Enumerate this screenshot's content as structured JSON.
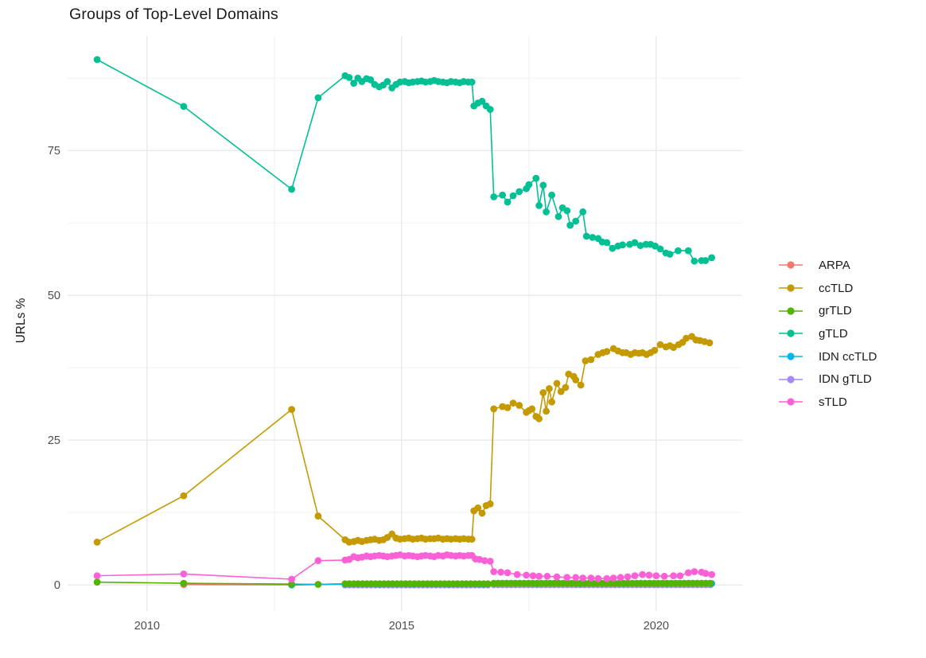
{
  "title": "Groups of Top-Level Domains",
  "axes": {
    "y_label": "URLs %",
    "x_tick_labels": [
      "2010",
      "2015",
      "2020"
    ],
    "y_tick_labels": [
      "0",
      "25",
      "50",
      "75"
    ]
  },
  "chart_data": {
    "type": "line",
    "title": "Groups of Top-Level Domains",
    "xlabel": "",
    "ylabel": "URLs %",
    "grid": true,
    "legend_position": "right",
    "x_domain": [
      2008.44,
      2021.69
    ],
    "y_domain": [
      -4.5,
      94.8
    ],
    "x_ticks": [
      {
        "v": 2010,
        "label": "2010"
      },
      {
        "v": 2015,
        "label": "2015"
      },
      {
        "v": 2020,
        "label": "2020"
      }
    ],
    "x_minor": [
      2012.5,
      2017.5
    ],
    "y_ticks": [
      {
        "v": 0,
        "label": "0"
      },
      {
        "v": 25,
        "label": "25"
      },
      {
        "v": 50,
        "label": "50"
      },
      {
        "v": 75,
        "label": "75"
      }
    ],
    "y_minor": [
      12.5,
      37.5,
      62.5,
      87.5
    ],
    "line_order": [
      "ARPA",
      "IDN gTLD",
      "grTLD",
      "IDN ccTLD",
      "ccTLD",
      "gTLD",
      "sTLD"
    ],
    "point_order": [
      "ARPA",
      "IDN gTLD",
      "IDN ccTLD",
      "grTLD",
      "ccTLD",
      "gTLD",
      "sTLD"
    ],
    "series": [
      {
        "name": "ARPA",
        "color": "#F8766D",
        "points": [
          [
            2010.72,
            0.08
          ],
          [
            2012.84,
            0.02
          ]
        ],
        "bands": [
          {
            "x0": 2013.89,
            "x1": 2016.77,
            "step": 0.085,
            "value": 0.2
          },
          {
            "x0": 2016.81,
            "x1": 2021.09,
            "step": 0.085,
            "value": 0.3
          }
        ]
      },
      {
        "name": "ccTLD",
        "color": "#C49A00",
        "points": [
          [
            2009.02,
            7.4
          ],
          [
            2010.72,
            15.4
          ],
          [
            2012.84,
            30.3
          ],
          [
            2013.36,
            11.9
          ],
          [
            2013.89,
            7.8
          ],
          [
            2013.97,
            7.4
          ],
          [
            2014.06,
            7.5
          ],
          [
            2014.14,
            7.7
          ],
          [
            2014.22,
            7.5
          ],
          [
            2014.31,
            7.7
          ],
          [
            2014.39,
            7.8
          ],
          [
            2014.47,
            7.9
          ],
          [
            2014.56,
            7.7
          ],
          [
            2014.64,
            7.8
          ],
          [
            2014.72,
            8.2
          ],
          [
            2014.81,
            8.8
          ],
          [
            2014.89,
            8.1
          ],
          [
            2014.97,
            7.9
          ],
          [
            2015.06,
            8.0
          ],
          [
            2015.14,
            8.1
          ],
          [
            2015.22,
            7.9
          ],
          [
            2015.31,
            8.0
          ],
          [
            2015.39,
            8.1
          ],
          [
            2015.47,
            7.9
          ],
          [
            2015.56,
            8.0
          ],
          [
            2015.64,
            8.0
          ],
          [
            2015.72,
            8.1
          ],
          [
            2015.81,
            7.9
          ],
          [
            2015.89,
            8.0
          ],
          [
            2015.97,
            7.9
          ],
          [
            2016.06,
            8.0
          ],
          [
            2016.14,
            7.9
          ],
          [
            2016.22,
            8.0
          ],
          [
            2016.31,
            7.9
          ],
          [
            2016.38,
            7.9
          ],
          [
            2016.42,
            12.8
          ],
          [
            2016.5,
            13.3
          ],
          [
            2016.58,
            12.4
          ],
          [
            2016.66,
            13.7
          ],
          [
            2016.74,
            14.0
          ],
          [
            2016.81,
            30.4
          ],
          [
            2016.98,
            30.8
          ],
          [
            2017.08,
            30.6
          ],
          [
            2017.19,
            31.4
          ],
          [
            2017.31,
            31.0
          ],
          [
            2017.45,
            29.8
          ],
          [
            2017.5,
            30.1
          ],
          [
            2017.56,
            30.4
          ],
          [
            2017.64,
            29.1
          ],
          [
            2017.7,
            28.7
          ],
          [
            2017.78,
            33.2
          ],
          [
            2017.84,
            30.0
          ],
          [
            2017.9,
            33.9
          ],
          [
            2017.95,
            31.6
          ],
          [
            2018.05,
            34.8
          ],
          [
            2018.13,
            33.4
          ],
          [
            2018.22,
            34.1
          ],
          [
            2018.28,
            36.4
          ],
          [
            2018.38,
            36.0
          ],
          [
            2018.42,
            35.4
          ],
          [
            2018.52,
            34.5
          ],
          [
            2018.61,
            38.7
          ],
          [
            2018.72,
            38.9
          ],
          [
            2018.86,
            39.8
          ],
          [
            2018.95,
            40.1
          ],
          [
            2019.03,
            40.3
          ],
          [
            2019.16,
            40.8
          ],
          [
            2019.25,
            40.4
          ],
          [
            2019.34,
            40.1
          ],
          [
            2019.41,
            40.1
          ],
          [
            2019.5,
            39.8
          ],
          [
            2019.58,
            40.1
          ],
          [
            2019.66,
            40.0
          ],
          [
            2019.73,
            40.1
          ],
          [
            2019.81,
            39.8
          ],
          [
            2019.89,
            40.1
          ],
          [
            2019.97,
            40.5
          ],
          [
            2020.08,
            41.5
          ],
          [
            2020.19,
            41.1
          ],
          [
            2020.27,
            41.3
          ],
          [
            2020.34,
            41.0
          ],
          [
            2020.44,
            41.5
          ],
          [
            2020.52,
            41.9
          ],
          [
            2020.59,
            42.6
          ],
          [
            2020.7,
            42.9
          ],
          [
            2020.78,
            42.3
          ],
          [
            2020.86,
            42.2
          ],
          [
            2020.95,
            42.0
          ],
          [
            2021.05,
            41.8
          ]
        ]
      },
      {
        "name": "grTLD",
        "color": "#53B400",
        "points": [
          [
            2009.02,
            0.5
          ],
          [
            2010.72,
            0.3
          ],
          [
            2012.84,
            0.15
          ],
          [
            2013.36,
            0.1
          ]
        ],
        "bands": [
          {
            "x0": 2013.89,
            "x1": 2016.77,
            "step": 0.085,
            "value": 0.2
          },
          {
            "x0": 2016.81,
            "x1": 2021.09,
            "step": 0.085,
            "value": 0.3
          }
        ]
      },
      {
        "name": "gTLD",
        "color": "#00C094",
        "points": [
          [
            2009.02,
            90.7
          ],
          [
            2010.72,
            82.6
          ],
          [
            2012.84,
            68.3
          ],
          [
            2013.36,
            84.1
          ],
          [
            2013.89,
            87.9
          ],
          [
            2013.97,
            87.6
          ],
          [
            2014.06,
            86.6
          ],
          [
            2014.14,
            87.5
          ],
          [
            2014.22,
            86.9
          ],
          [
            2014.31,
            87.4
          ],
          [
            2014.39,
            87.2
          ],
          [
            2014.47,
            86.4
          ],
          [
            2014.56,
            86.0
          ],
          [
            2014.64,
            86.3
          ],
          [
            2014.72,
            86.9
          ],
          [
            2014.81,
            85.8
          ],
          [
            2014.89,
            86.4
          ],
          [
            2014.97,
            86.8
          ],
          [
            2015.06,
            86.9
          ],
          [
            2015.14,
            86.7
          ],
          [
            2015.22,
            86.8
          ],
          [
            2015.31,
            86.9
          ],
          [
            2015.39,
            87.0
          ],
          [
            2015.47,
            86.8
          ],
          [
            2015.56,
            86.9
          ],
          [
            2015.64,
            87.1
          ],
          [
            2015.72,
            86.9
          ],
          [
            2015.81,
            86.8
          ],
          [
            2015.89,
            86.7
          ],
          [
            2015.97,
            86.9
          ],
          [
            2016.06,
            86.8
          ],
          [
            2016.14,
            86.7
          ],
          [
            2016.22,
            86.9
          ],
          [
            2016.31,
            86.8
          ],
          [
            2016.38,
            86.8
          ],
          [
            2016.42,
            82.7
          ],
          [
            2016.5,
            83.2
          ],
          [
            2016.58,
            83.5
          ],
          [
            2016.66,
            82.7
          ],
          [
            2016.74,
            82.1
          ],
          [
            2016.81,
            67.0
          ],
          [
            2016.98,
            67.3
          ],
          [
            2017.08,
            66.1
          ],
          [
            2017.19,
            67.2
          ],
          [
            2017.31,
            67.9
          ],
          [
            2017.45,
            68.4
          ],
          [
            2017.5,
            69.1
          ],
          [
            2017.64,
            70.2
          ],
          [
            2017.7,
            65.5
          ],
          [
            2017.78,
            69.0
          ],
          [
            2017.84,
            64.4
          ],
          [
            2017.95,
            67.3
          ],
          [
            2018.08,
            63.6
          ],
          [
            2018.16,
            65.1
          ],
          [
            2018.25,
            64.6
          ],
          [
            2018.31,
            62.1
          ],
          [
            2018.42,
            62.8
          ],
          [
            2018.56,
            64.4
          ],
          [
            2018.63,
            60.2
          ],
          [
            2018.75,
            60.0
          ],
          [
            2018.86,
            59.8
          ],
          [
            2018.94,
            59.2
          ],
          [
            2019.03,
            59.1
          ],
          [
            2019.14,
            58.1
          ],
          [
            2019.25,
            58.5
          ],
          [
            2019.34,
            58.7
          ],
          [
            2019.48,
            58.8
          ],
          [
            2019.58,
            59.1
          ],
          [
            2019.69,
            58.6
          ],
          [
            2019.8,
            58.8
          ],
          [
            2019.89,
            58.8
          ],
          [
            2019.98,
            58.5
          ],
          [
            2020.08,
            58.0
          ],
          [
            2020.19,
            57.3
          ],
          [
            2020.27,
            57.1
          ],
          [
            2020.43,
            57.7
          ],
          [
            2020.63,
            57.7
          ],
          [
            2020.75,
            55.9
          ],
          [
            2020.89,
            56.0
          ],
          [
            2020.97,
            56.0
          ],
          [
            2021.09,
            56.5
          ]
        ]
      },
      {
        "name": "IDN ccTLD",
        "color": "#00B6EB",
        "points": [
          [
            2012.84,
            0.0
          ],
          [
            2013.89,
            0.15
          ],
          [
            2014.57,
            0.15
          ],
          [
            2015.25,
            0.15
          ],
          [
            2015.93,
            0.15
          ],
          [
            2016.61,
            0.15
          ],
          [
            2016.81,
            0.25
          ],
          [
            2017.66,
            0.25
          ],
          [
            2018.51,
            0.25
          ],
          [
            2019.36,
            0.25
          ],
          [
            2020.21,
            0.25
          ],
          [
            2021.09,
            0.25
          ]
        ]
      },
      {
        "name": "IDN gTLD",
        "color": "#A58AFF",
        "points": [],
        "bands": [
          {
            "x0": 2013.89,
            "x1": 2016.77,
            "step": 0.085,
            "value": 0.0
          },
          {
            "x0": 2016.81,
            "x1": 2021.09,
            "step": 0.085,
            "value": 0.05
          }
        ]
      },
      {
        "name": "sTLD",
        "color": "#FB61D7",
        "points": [
          [
            2009.02,
            1.6
          ],
          [
            2010.72,
            1.9
          ],
          [
            2012.84,
            1.0
          ],
          [
            2013.36,
            4.2
          ],
          [
            2013.89,
            4.3
          ],
          [
            2013.97,
            4.4
          ],
          [
            2014.06,
            4.9
          ],
          [
            2014.14,
            4.7
          ],
          [
            2014.22,
            4.8
          ],
          [
            2014.31,
            5.0
          ],
          [
            2014.39,
            4.9
          ],
          [
            2014.47,
            5.0
          ],
          [
            2014.56,
            5.1
          ],
          [
            2014.64,
            5.0
          ],
          [
            2014.72,
            4.9
          ],
          [
            2014.81,
            5.0
          ],
          [
            2014.89,
            5.1
          ],
          [
            2014.97,
            5.2
          ],
          [
            2015.06,
            5.0
          ],
          [
            2015.14,
            5.1
          ],
          [
            2015.22,
            5.0
          ],
          [
            2015.31,
            4.9
          ],
          [
            2015.39,
            5.0
          ],
          [
            2015.47,
            5.1
          ],
          [
            2015.56,
            5.0
          ],
          [
            2015.64,
            4.9
          ],
          [
            2015.72,
            5.1
          ],
          [
            2015.81,
            5.0
          ],
          [
            2015.89,
            5.2
          ],
          [
            2015.97,
            5.1
          ],
          [
            2016.06,
            5.0
          ],
          [
            2016.14,
            5.1
          ],
          [
            2016.22,
            5.0
          ],
          [
            2016.31,
            5.1
          ],
          [
            2016.38,
            5.1
          ],
          [
            2016.45,
            4.5
          ],
          [
            2016.53,
            4.4
          ],
          [
            2016.63,
            4.2
          ],
          [
            2016.74,
            4.1
          ],
          [
            2016.81,
            2.3
          ],
          [
            2016.95,
            2.2
          ],
          [
            2017.08,
            2.1
          ],
          [
            2017.27,
            1.8
          ],
          [
            2017.45,
            1.7
          ],
          [
            2017.58,
            1.6
          ],
          [
            2017.7,
            1.5
          ],
          [
            2017.86,
            1.5
          ],
          [
            2018.05,
            1.4
          ],
          [
            2018.25,
            1.3
          ],
          [
            2018.42,
            1.3
          ],
          [
            2018.56,
            1.2
          ],
          [
            2018.72,
            1.2
          ],
          [
            2018.86,
            1.1
          ],
          [
            2019.03,
            1.1
          ],
          [
            2019.16,
            1.2
          ],
          [
            2019.3,
            1.3
          ],
          [
            2019.44,
            1.4
          ],
          [
            2019.58,
            1.6
          ],
          [
            2019.73,
            1.8
          ],
          [
            2019.86,
            1.7
          ],
          [
            2020.0,
            1.6
          ],
          [
            2020.16,
            1.5
          ],
          [
            2020.34,
            1.6
          ],
          [
            2020.47,
            1.6
          ],
          [
            2020.63,
            2.1
          ],
          [
            2020.75,
            2.3
          ],
          [
            2020.89,
            2.2
          ],
          [
            2020.97,
            2.0
          ],
          [
            2021.09,
            1.8
          ]
        ]
      }
    ]
  }
}
